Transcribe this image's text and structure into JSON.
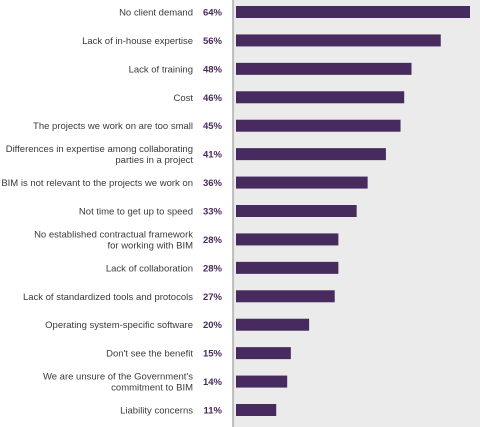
{
  "chart_data": {
    "type": "bar",
    "orientation": "horizontal",
    "categories": [
      [
        "No client demand"
      ],
      [
        "Lack of in-house expertise"
      ],
      [
        "Lack of training"
      ],
      [
        "Cost"
      ],
      [
        "The projects we work on are too small"
      ],
      [
        "Differences in expertise among collaborating",
        "parties in a project"
      ],
      [
        "BIM is not relevant to the projects we work on"
      ],
      [
        "Not time to get up to speed"
      ],
      [
        "No established contractual framework",
        "for working with BIM"
      ],
      [
        "Lack of collaboration"
      ],
      [
        "Lack of standardized tools and protocols"
      ],
      [
        "Operating system-specific software"
      ],
      [
        "Don't see the benefit"
      ],
      [
        "We are unsure of the Government's",
        "commitment to BIM"
      ],
      [
        "Liability concerns"
      ]
    ],
    "values": [
      64,
      56,
      48,
      46,
      45,
      41,
      36,
      33,
      28,
      28,
      27,
      20,
      15,
      14,
      11
    ],
    "value_labels": [
      "64%",
      "56%",
      "48%",
      "46%",
      "45%",
      "41%",
      "36%",
      "33%",
      "28%",
      "28%",
      "27%",
      "20%",
      "15%",
      "14%",
      "11%"
    ],
    "xlim": [
      0,
      66
    ],
    "colors": {
      "bar": "#472a5e",
      "track": "#ebebeb",
      "label": "#3a3a3a",
      "value": "#4a2a5c"
    }
  }
}
